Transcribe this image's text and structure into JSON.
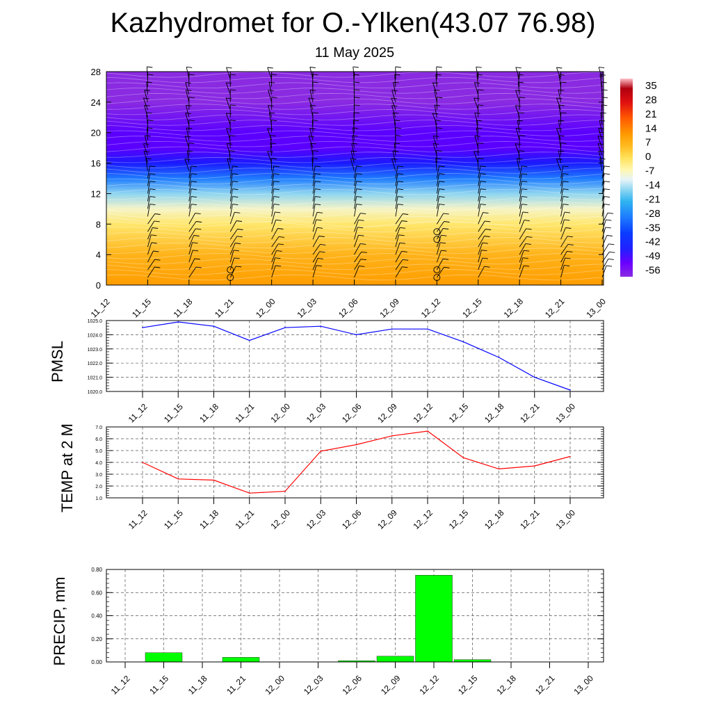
{
  "header": {
    "title": "Kazhydromet for O.-Ylken(43.07 76.98)",
    "subtitle": "11 May 2025"
  },
  "chart_data": [
    {
      "type": "heatmap",
      "name": "temperature-cross-section",
      "x_categories": [
        "11_12",
        "11_15",
        "11_18",
        "11_21",
        "12_00",
        "12_03",
        "12_06",
        "12_09",
        "12_12",
        "12_15",
        "12_18",
        "12_21",
        "13_00"
      ],
      "ylim": [
        0,
        28
      ],
      "yticks": [
        "0",
        "4",
        "8",
        "12",
        "16",
        "20",
        "24",
        "28"
      ],
      "colorbar_labels": [
        "35",
        "28",
        "21",
        "14",
        "7",
        "0",
        "-7",
        "-14",
        "-21",
        "-28",
        "-35",
        "-42",
        "-49",
        "-56"
      ],
      "colorbar_range": [
        -63,
        42
      ],
      "profile_levels": [
        0,
        4,
        8,
        10,
        12,
        14,
        16,
        18,
        20,
        24,
        28
      ],
      "profile_values": [
        7,
        3,
        -4,
        -10,
        -20,
        -35,
        -50,
        -58,
        -58,
        -63,
        -63
      ],
      "barbs_row_values": [
        1,
        2,
        3,
        4,
        5,
        6,
        7,
        8,
        9,
        10,
        11,
        12,
        13,
        14,
        15,
        16,
        17,
        18,
        19,
        20,
        21,
        22,
        23,
        24,
        25,
        26,
        27
      ],
      "circle_markers": [
        {
          "x": "11_21",
          "y": 1
        },
        {
          "x": "11_21",
          "y": 2
        },
        {
          "x": "12_12",
          "y": 1
        },
        {
          "x": "12_12",
          "y": 2
        },
        {
          "x": "12_12",
          "y": 6
        },
        {
          "x": "12_12",
          "y": 7
        }
      ]
    },
    {
      "type": "line",
      "name": "pmsl",
      "ylabel": "PMSL",
      "color": "#0000ff",
      "categories": [
        "11_12",
        "11_15",
        "11_18",
        "11_21",
        "12_00",
        "12_03",
        "12_06",
        "12_09",
        "12_12",
        "12_15",
        "12_18",
        "12_21",
        "13_00"
      ],
      "values": [
        1024.5,
        1024.9,
        1024.6,
        1023.6,
        1024.5,
        1024.6,
        1024.0,
        1024.4,
        1024.4,
        1023.5,
        1022.4,
        1021.0,
        1020.1
      ],
      "ylim": [
        1020.0,
        1025.0
      ],
      "yticks": [
        "1020.0",
        "1021.0",
        "1022.0",
        "1023.0",
        "1024.0",
        "1025.0"
      ]
    },
    {
      "type": "line",
      "name": "temp-2m",
      "ylabel": "TEMP at 2 M",
      "color": "#ff0000",
      "categories": [
        "11_12",
        "11_15",
        "11_18",
        "11_21",
        "12_00",
        "12_03",
        "12_06",
        "12_09",
        "12_12",
        "12_15",
        "12_18",
        "12_21",
        "13_00"
      ],
      "values": [
        4.0,
        2.6,
        2.5,
        1.4,
        1.55,
        4.95,
        5.5,
        6.25,
        6.65,
        4.4,
        3.45,
        3.7,
        4.5
      ],
      "ylim": [
        1.0,
        7.0
      ],
      "yticks": [
        "1.0",
        "2.0",
        "3.0",
        "4.0",
        "5.0",
        "6.0",
        "7.0"
      ]
    },
    {
      "type": "bar",
      "name": "precip",
      "ylabel": "PRECIP, mm",
      "color": "#00ff00",
      "categories": [
        "11_12",
        "11_15",
        "11_18",
        "11_21",
        "12_00",
        "12_03",
        "12_06",
        "12_09",
        "12_12",
        "12_15",
        "12_18",
        "12_21",
        "13_00"
      ],
      "values": [
        0,
        0.08,
        0,
        0.04,
        0,
        0,
        0.01,
        0.05,
        0.75,
        0.02,
        0,
        0,
        0
      ],
      "ylim": [
        0,
        0.8
      ],
      "yticks": [
        "0.00",
        "0.20",
        "0.40",
        "0.60",
        "0.80"
      ]
    }
  ]
}
